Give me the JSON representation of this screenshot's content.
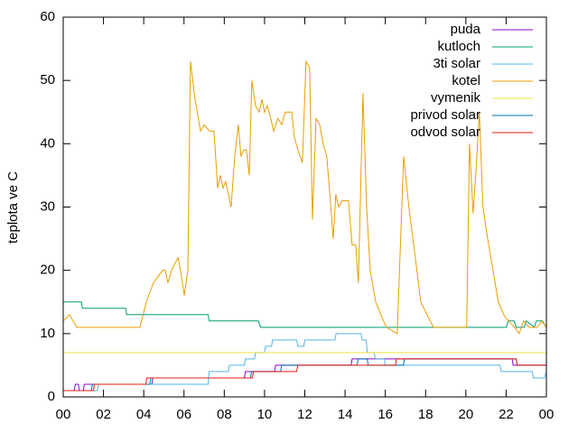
{
  "chart_data": {
    "type": "line",
    "ylabel": "teplota ve C",
    "xlim": [
      0,
      24
    ],
    "xticks": [
      {
        "value": 0,
        "label": "00"
      },
      {
        "value": 2,
        "label": "02"
      },
      {
        "value": 4,
        "label": "04"
      },
      {
        "value": 6,
        "label": "06"
      },
      {
        "value": 8,
        "label": "08"
      },
      10,
      12,
      14,
      16,
      18,
      20,
      22,
      {
        "value": 24,
        "label": "00"
      }
    ],
    "ylim": [
      0,
      60
    ],
    "yticks": [
      0,
      10,
      20,
      30,
      40,
      50,
      60
    ],
    "grid": false,
    "legend": "top-right",
    "series": [
      {
        "name": "puda",
        "color": "#9400d3",
        "x": [
          0,
          0.55,
          0.6,
          0.75,
          0.8,
          1.0,
          1.05,
          4.4,
          4.45,
          9.0,
          9.05,
          10.5,
          10.55,
          14.3,
          14.35,
          22.3,
          22.35,
          24
        ],
        "values": [
          1,
          1,
          2,
          2,
          1,
          1,
          2,
          2,
          3,
          3,
          4,
          4,
          5,
          5,
          6,
          6,
          5,
          5
        ]
      },
      {
        "name": "kutloch",
        "color": "#009e73",
        "x": [
          0,
          0.9,
          0.95,
          3.1,
          3.15,
          7.2,
          7.25,
          9.7,
          9.8,
          22.0,
          22.1,
          22.4,
          22.5,
          22.9,
          23.0,
          23.4,
          23.5,
          23.8,
          24
        ],
        "values": [
          15,
          15,
          14,
          14,
          13,
          13,
          12,
          12,
          11,
          11,
          12,
          12,
          11,
          11,
          12,
          11,
          12,
          12,
          11
        ]
      },
      {
        "name": "3ti solar",
        "color": "#56b4e9",
        "x": [
          0,
          1.7,
          1.75,
          7.2,
          7.25,
          8.2,
          8.25,
          9.0,
          9.05,
          9.5,
          9.55,
          10.0,
          10.05,
          10.35,
          10.4,
          11.6,
          11.65,
          11.95,
          12.0,
          13.5,
          13.55,
          14.8,
          14.85,
          15.05,
          15.1,
          15.45,
          15.5,
          15.95,
          16.0,
          21.7,
          21.75,
          23.3,
          23.35,
          23.9,
          24
        ],
        "values": [
          1,
          1,
          2,
          2,
          4,
          4,
          5,
          5,
          6,
          6,
          7,
          7,
          8,
          8,
          9,
          9,
          8,
          8,
          9,
          9,
          10,
          10,
          9,
          9,
          7,
          7,
          6,
          6,
          5,
          5,
          4,
          4,
          3,
          3,
          4
        ]
      },
      {
        "name": "kotel",
        "color": "#e69f00",
        "x": [
          0,
          0.31,
          0.67,
          3.81,
          4.13,
          4.48,
          4.71,
          4.93,
          5.07,
          5.2,
          5.38,
          5.7,
          5.83,
          6.01,
          6.19,
          6.32,
          6.55,
          6.82,
          7.0,
          7.26,
          7.49,
          7.67,
          7.8,
          7.94,
          8.07,
          8.21,
          8.34,
          8.52,
          8.7,
          8.83,
          8.97,
          9.1,
          9.24,
          9.37,
          9.55,
          9.73,
          9.87,
          10.0,
          10.13,
          10.31,
          10.45,
          10.67,
          10.85,
          11.03,
          11.35,
          11.48,
          11.66,
          11.88,
          12.06,
          12.24,
          12.38,
          12.56,
          12.74,
          12.91,
          13.09,
          13.27,
          13.41,
          13.54,
          13.68,
          13.86,
          14.17,
          14.35,
          14.53,
          14.66,
          14.89,
          15.07,
          15.25,
          15.52,
          15.78,
          16.05,
          16.59,
          16.91,
          17.17,
          17.49,
          17.76,
          18.07,
          18.39,
          20.04,
          20.18,
          20.36,
          20.49,
          20.67,
          20.85,
          21.08,
          21.35,
          21.61,
          21.88,
          22.11,
          22.42,
          22.65,
          22.87,
          23.14,
          23.54,
          23.77,
          24
        ],
        "values": [
          12,
          13,
          11,
          11,
          15,
          18,
          19,
          20,
          20,
          18,
          20,
          22,
          20,
          16,
          20,
          53,
          47,
          42,
          43,
          42,
          42,
          33,
          35,
          33,
          34,
          32,
          30,
          38,
          43,
          38,
          39,
          39,
          35,
          50,
          46,
          45,
          47,
          45,
          46,
          44,
          42,
          44,
          43,
          45,
          45,
          41,
          39,
          37,
          53,
          52,
          28,
          44,
          43,
          40,
          38,
          31,
          25,
          32,
          30,
          31,
          31,
          24,
          24,
          18,
          48,
          30,
          20,
          15,
          13,
          11,
          10,
          38,
          30,
          22,
          15,
          13,
          11,
          11,
          40,
          29,
          35,
          45,
          30,
          25,
          20,
          15,
          13,
          12,
          11,
          10,
          12,
          11,
          11,
          12,
          11
        ]
      },
      {
        "name": "vymenik",
        "color": "#f0e442",
        "x": [
          0,
          24
        ],
        "values": [
          7,
          7
        ]
      },
      {
        "name": "privod solar",
        "color": "#0072b2",
        "x": [
          0,
          1.4,
          1.45,
          4.3,
          4.35,
          9.3,
          9.35,
          10.8,
          10.85,
          14.6,
          14.65,
          15.1,
          15.15,
          16.9,
          16.95,
          22.5,
          22.55,
          24
        ],
        "values": [
          1,
          1,
          2,
          2,
          3,
          3,
          4,
          4,
          5,
          5,
          6,
          6,
          5,
          5,
          6,
          6,
          5,
          5
        ]
      },
      {
        "name": "odvod solar",
        "color": "#e51e10",
        "x": [
          0,
          1.5,
          1.55,
          4.1,
          4.15,
          9.4,
          9.45,
          11.6,
          11.65,
          16.5,
          16.55,
          22.5,
          22.55,
          24
        ],
        "values": [
          1,
          1,
          2,
          2,
          3,
          3,
          4,
          4,
          5,
          5,
          6,
          6,
          5,
          5
        ]
      }
    ]
  }
}
